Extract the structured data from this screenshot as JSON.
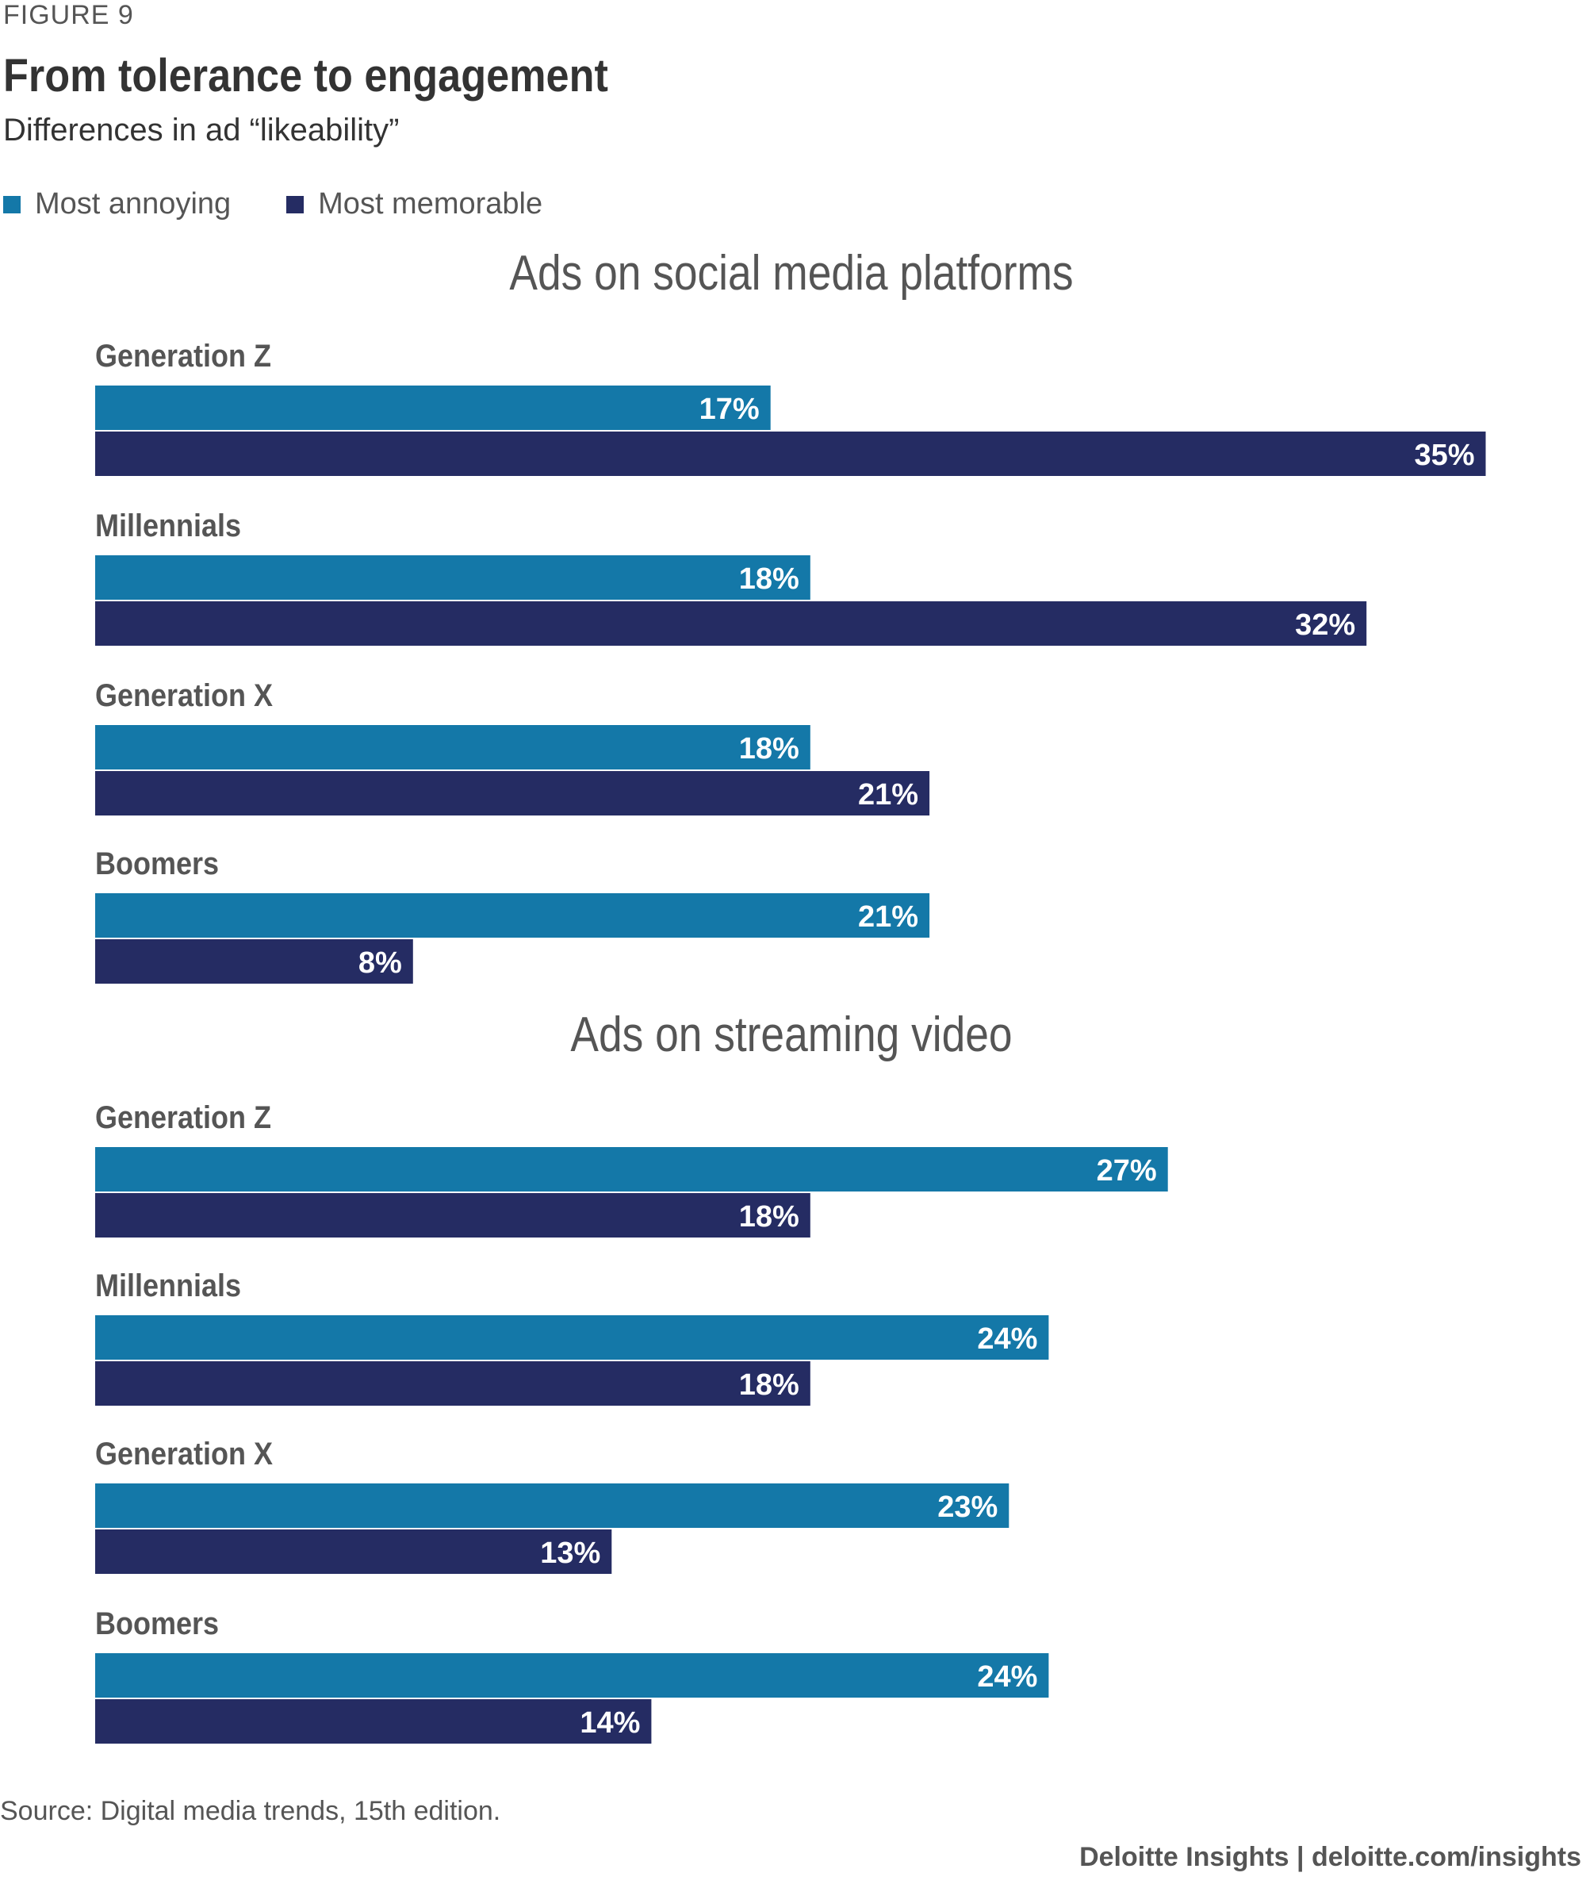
{
  "figure_label": "FIGURE 9",
  "title": "From tolerance to engagement",
  "subtitle": "Differences in ad “likeability”",
  "legend": [
    {
      "label": "Most annoying",
      "color": "#1478a8"
    },
    {
      "label": "Most memorable",
      "color": "#252c63"
    }
  ],
  "source": "Source: Digital media trends, 15th edition.",
  "credit": "Deloitte Insights | deloitte.com/insights",
  "chart_data": [
    {
      "type": "bar",
      "orientation": "horizontal",
      "title": "Ads on social media platforms",
      "categories": [
        "Generation Z",
        "Millennials",
        "Generation X",
        "Boomers"
      ],
      "series": [
        {
          "name": "Most annoying",
          "values": [
            17,
            18,
            18,
            21
          ],
          "color": "#1478a8"
        },
        {
          "name": "Most memorable",
          "values": [
            35,
            32,
            21,
            8
          ],
          "color": "#252c63"
        }
      ],
      "value_suffix": "%",
      "xlim": [
        0,
        35
      ]
    },
    {
      "type": "bar",
      "orientation": "horizontal",
      "title": "Ads on streaming video",
      "categories": [
        "Generation Z",
        "Millennials",
        "Generation X",
        "Boomers"
      ],
      "series": [
        {
          "name": "Most annoying",
          "values": [
            27,
            24,
            23,
            24
          ],
          "color": "#1478a8"
        },
        {
          "name": "Most memorable",
          "values": [
            18,
            18,
            13,
            14
          ],
          "color": "#252c63"
        }
      ],
      "value_suffix": "%",
      "xlim": [
        0,
        35
      ]
    }
  ]
}
